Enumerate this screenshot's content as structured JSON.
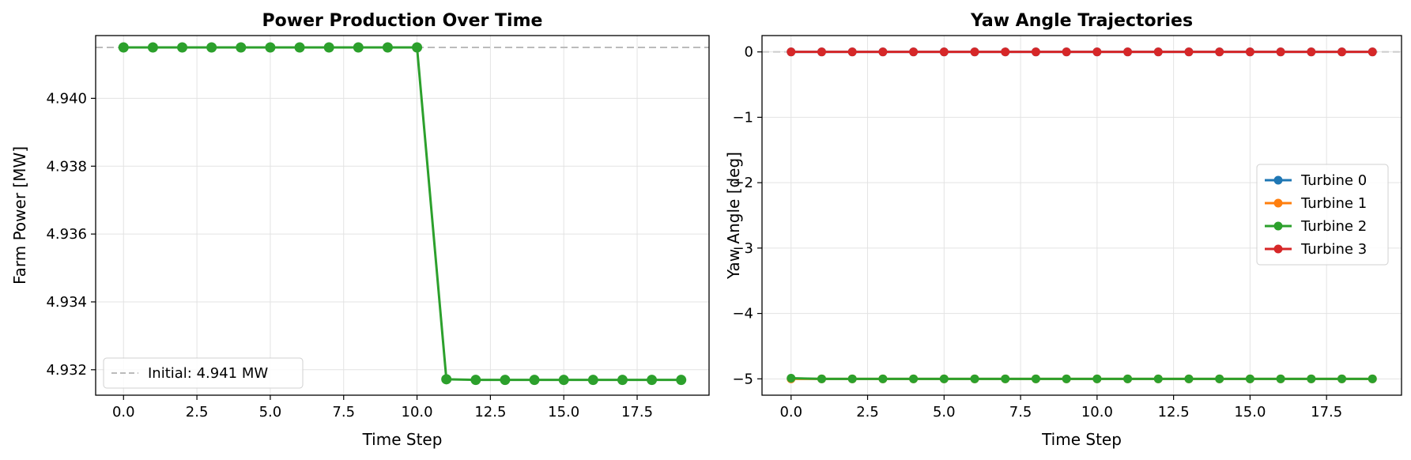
{
  "chart_data": [
    {
      "type": "line",
      "title": "Power Production Over Time",
      "xlabel": "Time Step",
      "ylabel": "Farm Power [MW]",
      "xlim": [
        -0.95,
        19.95
      ],
      "ylim": [
        4.93125,
        4.94185
      ],
      "xticks": [
        0,
        2.5,
        5,
        7.5,
        10,
        12.5,
        15,
        17.5
      ],
      "xtick_labels": [
        "0.0",
        "2.5",
        "5.0",
        "7.5",
        "10.0",
        "12.5",
        "15.0",
        "17.5"
      ],
      "yticks": [
        4.932,
        4.934,
        4.936,
        4.938,
        4.94
      ],
      "ytick_labels": [
        "4.932",
        "4.934",
        "4.936",
        "4.938",
        "4.940"
      ],
      "grid": true,
      "legend_position": "lower-left",
      "x": [
        0,
        1,
        2,
        3,
        4,
        5,
        6,
        7,
        8,
        9,
        10,
        11,
        12,
        13,
        14,
        15,
        16,
        17,
        18,
        19
      ],
      "series": [
        {
          "color": "#2ca02c",
          "values": [
            4.9415,
            4.9415,
            4.9415,
            4.9415,
            4.9415,
            4.9415,
            4.9415,
            4.9415,
            4.9415,
            4.9415,
            4.9415,
            4.93172,
            4.9317,
            4.9317,
            4.9317,
            4.9317,
            4.9317,
            4.9317,
            4.9317,
            4.9317
          ]
        }
      ],
      "reference_line": {
        "y": 4.9415,
        "label": "Initial: 4.941 MW",
        "color": "#bbbbbb",
        "style": "dashed"
      }
    },
    {
      "type": "line",
      "title": "Yaw Angle Trajectories",
      "xlabel": "Time Step",
      "ylabel": "Yaw Angle [deg]",
      "xlim": [
        -0.95,
        19.95
      ],
      "ylim": [
        -5.25,
        0.25
      ],
      "xticks": [
        0,
        2.5,
        5,
        7.5,
        10,
        12.5,
        15,
        17.5
      ],
      "xtick_labels": [
        "0.0",
        "2.5",
        "5.0",
        "7.5",
        "10.0",
        "12.5",
        "15.0",
        "17.5"
      ],
      "yticks": [
        0,
        -1,
        -2,
        -3,
        -4,
        -5
      ],
      "ytick_labels": [
        "0",
        "−1",
        "−2",
        "−3",
        "−4",
        "−5"
      ],
      "grid": true,
      "legend_position": "center-right",
      "x": [
        0,
        1,
        2,
        3,
        4,
        5,
        6,
        7,
        8,
        9,
        10,
        11,
        12,
        13,
        14,
        15,
        16,
        17,
        18,
        19
      ],
      "reference_line": {
        "y": 0,
        "color": "#cccccc",
        "style": "dashed"
      },
      "series": [
        {
          "name": "Turbine 0",
          "color": "#1f77b4",
          "values": [
            0,
            0,
            0,
            0,
            0,
            0,
            0,
            0,
            0,
            0,
            0,
            0,
            0,
            0,
            0,
            0,
            0,
            0,
            0,
            0
          ]
        },
        {
          "name": "Turbine 1",
          "color": "#ff7f0e",
          "values": [
            -5.0,
            -5.0,
            -5.0,
            -5.0,
            -5.0,
            -5.0,
            -5.0,
            -5.0,
            -5.0,
            -5.0,
            -5.0,
            -5.0,
            -5.0,
            -5.0,
            -5.0,
            -5.0,
            -5.0,
            -5.0,
            -5.0,
            -5.0
          ]
        },
        {
          "name": "Turbine 2",
          "color": "#2ca02c",
          "values": [
            -4.99,
            -5.0,
            -5.0,
            -5.0,
            -5.0,
            -5.0,
            -5.0,
            -5.0,
            -5.0,
            -5.0,
            -5.0,
            -5.0,
            -5.0,
            -5.0,
            -5.0,
            -5.0,
            -5.0,
            -5.0,
            -5.0,
            -5.0
          ]
        },
        {
          "name": "Turbine 3",
          "color": "#d62728",
          "values": [
            0,
            0,
            0,
            0,
            0,
            0,
            0,
            0,
            0,
            0,
            0,
            0,
            0,
            0,
            0,
            0,
            0,
            0,
            0,
            0
          ]
        }
      ]
    }
  ]
}
